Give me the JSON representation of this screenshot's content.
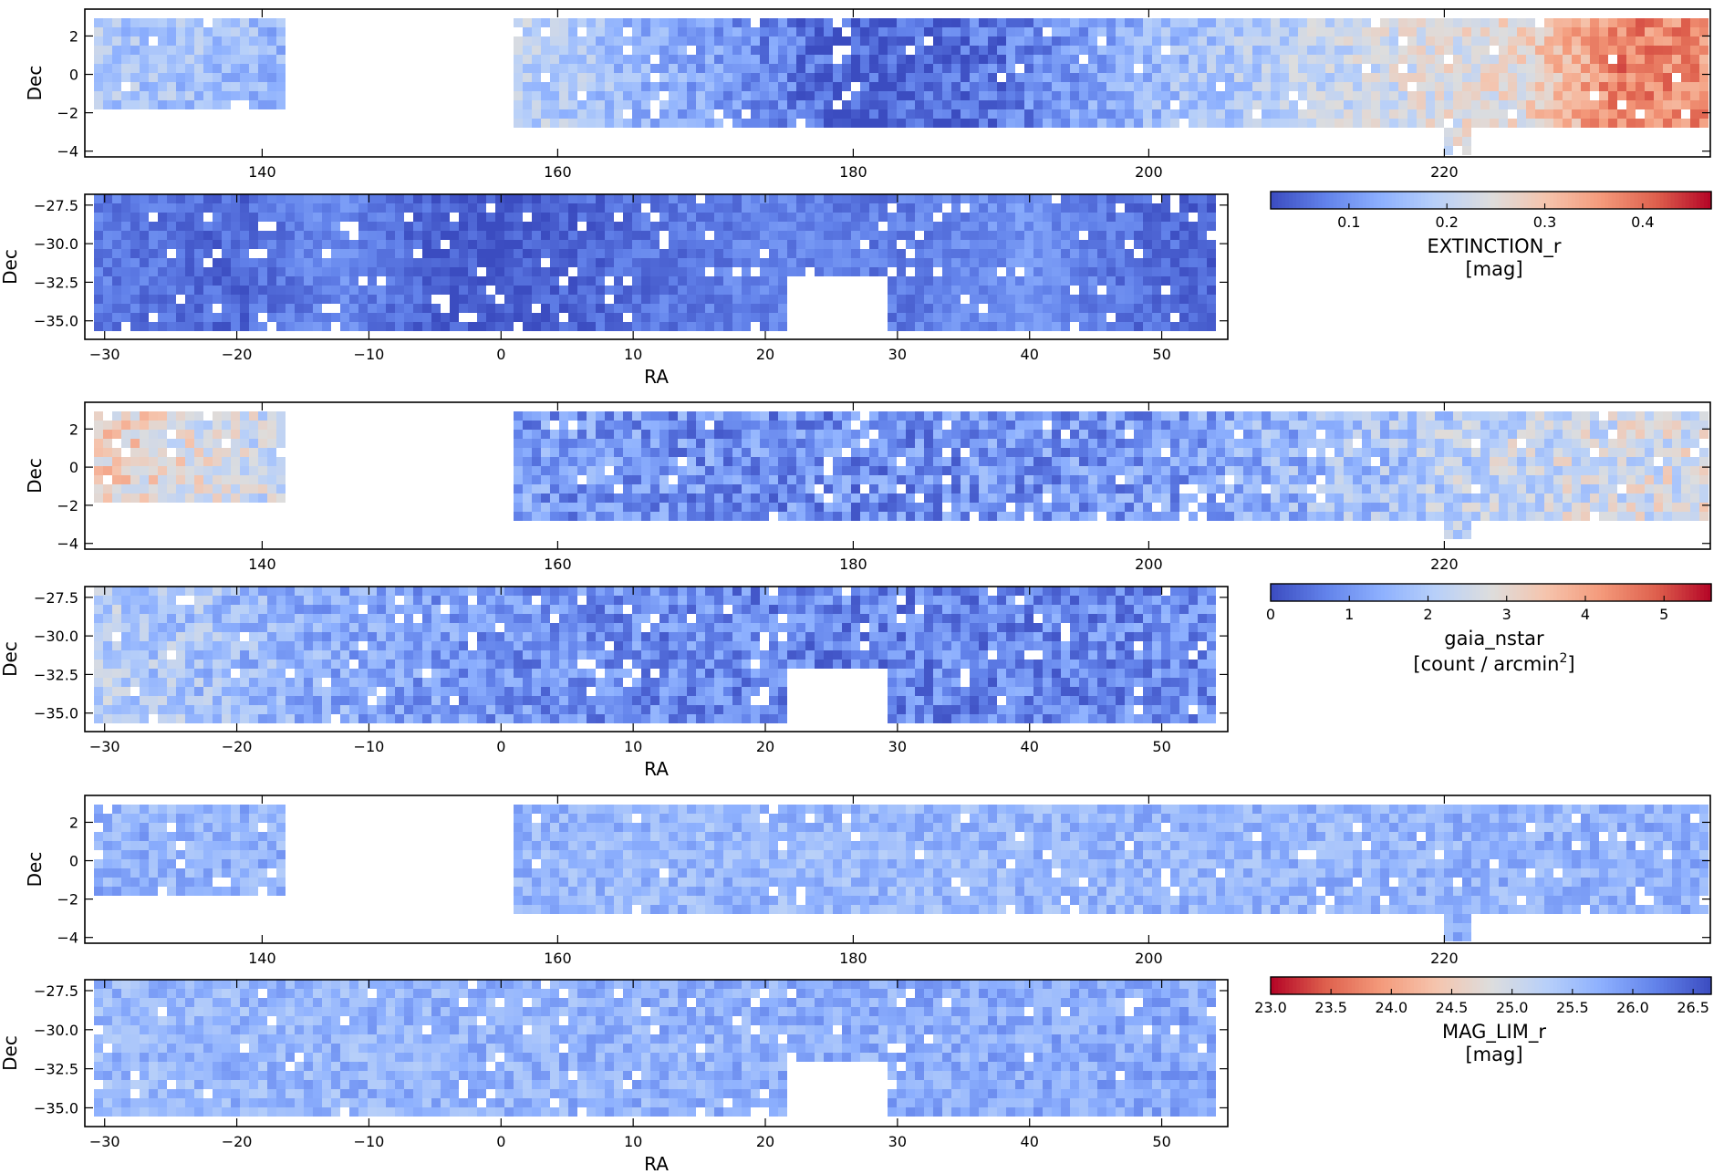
{
  "colors": {
    "cool_blue": "#3b4cc0",
    "neutral": "#dddddd",
    "warm_red": "#b40426",
    "axis": "#000000"
  },
  "chart_data": [
    {
      "type": "heatmap",
      "name": "extinction-north",
      "quantity": "EXTINCTION_r",
      "xlabel": "",
      "ylabel": "Dec",
      "xlim": [
        128,
        238
      ],
      "ylim": [
        -4.3,
        3.4
      ],
      "xticks": [
        140,
        160,
        180,
        200,
        220
      ],
      "xtick_labels": [
        "140",
        "160",
        "180",
        "200",
        "220"
      ],
      "yticks": [
        2,
        0,
        -2,
        -4
      ],
      "ytick_labels": [
        "2",
        "0",
        "−2",
        "−4"
      ],
      "footprint": [
        [
          128.5,
          141.5,
          -2,
          3
        ],
        [
          157,
          238,
          -3,
          3
        ],
        [
          203,
          205,
          -3,
          -2
        ],
        [
          220,
          222,
          -4,
          -3
        ]
      ],
      "trend": [
        [
          128,
          0.18
        ],
        [
          145,
          0.14
        ],
        [
          157,
          0.2
        ],
        [
          170,
          0.12
        ],
        [
          180,
          0.04
        ],
        [
          190,
          0.07
        ],
        [
          200,
          0.15
        ],
        [
          215,
          0.22
        ],
        [
          225,
          0.26
        ],
        [
          232,
          0.38
        ],
        [
          238,
          0.36
        ]
      ],
      "noise": 0.05,
      "cmap": "coolwarm",
      "vmin": 0.02,
      "vmax": 0.47
    },
    {
      "type": "heatmap",
      "name": "extinction-south",
      "quantity": "EXTINCTION_r",
      "xlabel": "RA",
      "ylabel": "Dec",
      "xlim": [
        -31.5,
        55
      ],
      "ylim": [
        -36.2,
        -26.8
      ],
      "xticks": [
        -30,
        -20,
        -10,
        0,
        10,
        20,
        30,
        40,
        50
      ],
      "xtick_labels": [
        "−30",
        "−20",
        "−10",
        "0",
        "10",
        "20",
        "30",
        "40",
        "50"
      ],
      "yticks": [
        -27.5,
        -30,
        -32.5,
        -35
      ],
      "ytick_labels": [
        "−27.5",
        "−30.0",
        "−32.5",
        "−35.0"
      ],
      "footprint": [
        [
          -30.5,
          54,
          -35.8,
          -27
        ]
      ],
      "holes": [
        [
          22,
          29,
          -36.5,
          -32.2
        ]
      ],
      "trend": [
        [
          -30,
          0.07
        ],
        [
          -20,
          0.05
        ],
        [
          -12,
          0.09
        ],
        [
          -5,
          0.04
        ],
        [
          0,
          0.03
        ],
        [
          10,
          0.06
        ],
        [
          20,
          0.08
        ],
        [
          30,
          0.07
        ],
        [
          40,
          0.1
        ],
        [
          48,
          0.06
        ],
        [
          54,
          0.04
        ]
      ],
      "noise": 0.03,
      "cmap": "coolwarm",
      "vmin": 0.02,
      "vmax": 0.47
    },
    {
      "type": "heatmap",
      "name": "gaia-north",
      "quantity": "gaia_nstar",
      "xlabel": "",
      "ylabel": "Dec",
      "xlim": [
        128,
        238
      ],
      "ylim": [
        -4.3,
        3.4
      ],
      "xticks": [
        140,
        160,
        180,
        200,
        220
      ],
      "xtick_labels": [
        "140",
        "160",
        "180",
        "200",
        "220"
      ],
      "yticks": [
        2,
        0,
        -2,
        -4
      ],
      "ytick_labels": [
        "2",
        "0",
        "−2",
        "−4"
      ],
      "footprint": [
        [
          128.5,
          141.5,
          -2,
          3
        ],
        [
          157,
          238,
          -3,
          3
        ],
        [
          203,
          205,
          -3,
          -2
        ],
        [
          220,
          222,
          -4,
          -3
        ]
      ],
      "trend": [
        [
          128,
          3.4
        ],
        [
          135,
          2.8
        ],
        [
          141,
          2.4
        ],
        [
          157,
          1.1
        ],
        [
          180,
          0.9
        ],
        [
          200,
          1.1
        ],
        [
          215,
          1.8
        ],
        [
          225,
          2.4
        ],
        [
          238,
          2.7
        ]
      ],
      "noise": 0.8,
      "cmap": "coolwarm",
      "vmin": 0,
      "vmax": 5.6
    },
    {
      "type": "heatmap",
      "name": "gaia-south",
      "quantity": "gaia_nstar",
      "xlabel": "RA",
      "ylabel": "Dec",
      "xlim": [
        -31.5,
        55
      ],
      "ylim": [
        -36.2,
        -26.8
      ],
      "xticks": [
        -30,
        -20,
        -10,
        0,
        10,
        20,
        30,
        40,
        50
      ],
      "xtick_labels": [
        "−30",
        "−20",
        "−10",
        "0",
        "10",
        "20",
        "30",
        "40",
        "50"
      ],
      "yticks": [
        -27.5,
        -30,
        -32.5,
        -35
      ],
      "ytick_labels": [
        "−27.5",
        "−30.0",
        "−32.5",
        "−35.0"
      ],
      "footprint": [
        [
          -30.5,
          54,
          -35.8,
          -27
        ]
      ],
      "holes": [
        [
          22,
          29,
          -36.5,
          -32.2
        ]
      ],
      "trend": [
        [
          -30,
          2.1
        ],
        [
          -20,
          1.7
        ],
        [
          -10,
          1.3
        ],
        [
          0,
          1.0
        ],
        [
          20,
          0.8
        ],
        [
          40,
          0.8
        ],
        [
          54,
          0.9
        ]
      ],
      "noise": 0.7,
      "cmap": "coolwarm",
      "vmin": 0,
      "vmax": 5.6
    },
    {
      "type": "heatmap",
      "name": "maglim-north",
      "quantity": "MAG_LIM_r",
      "xlabel": "",
      "ylabel": "Dec",
      "xlim": [
        128,
        238
      ],
      "ylim": [
        -4.3,
        3.4
      ],
      "xticks": [
        140,
        160,
        180,
        200,
        220
      ],
      "xtick_labels": [
        "140",
        "160",
        "180",
        "200",
        "220"
      ],
      "yticks": [
        2,
        0,
        -2,
        -4
      ],
      "ytick_labels": [
        "2",
        "0",
        "−2",
        "−4"
      ],
      "footprint": [
        [
          128.5,
          141.5,
          -2,
          3
        ],
        [
          157,
          238,
          -3,
          3
        ],
        [
          203,
          205,
          -3,
          -2
        ],
        [
          220,
          222,
          -4,
          -3
        ]
      ],
      "trend": [
        [
          128,
          25.7
        ],
        [
          180,
          25.6
        ],
        [
          238,
          25.7
        ]
      ],
      "noise": 0.35,
      "cmap": "coolwarm_r",
      "vmin": 23.0,
      "vmax": 26.65
    },
    {
      "type": "heatmap",
      "name": "maglim-south",
      "quantity": "MAG_LIM_r",
      "xlabel": "RA",
      "ylabel": "Dec",
      "xlim": [
        -31.5,
        55
      ],
      "ylim": [
        -36.2,
        -26.8
      ],
      "xticks": [
        -30,
        -20,
        -10,
        0,
        10,
        20,
        30,
        40,
        50
      ],
      "xtick_labels": [
        "−30",
        "−20",
        "−10",
        "0",
        "10",
        "20",
        "30",
        "40",
        "50"
      ],
      "yticks": [
        -27.5,
        -30,
        -32.5,
        -35
      ],
      "ytick_labels": [
        "−27.5",
        "−30.0",
        "−32.5",
        "−35.0"
      ],
      "footprint": [
        [
          -30.5,
          54,
          -35.8,
          -27
        ]
      ],
      "holes": [
        [
          22,
          29,
          -36.5,
          -32.2
        ]
      ],
      "trend": [
        [
          -30,
          25.6
        ],
        [
          10,
          25.7
        ],
        [
          54,
          25.8
        ]
      ],
      "noise": 0.35,
      "cmap": "coolwarm_r",
      "vmin": 23.0,
      "vmax": 26.65
    }
  ],
  "colorbars": [
    {
      "name": "colorbar-extinction",
      "cmap": "coolwarm",
      "vmin": 0.02,
      "vmax": 0.47,
      "ticks": [
        0.1,
        0.2,
        0.3,
        0.4
      ],
      "tick_labels": [
        "0.1",
        "0.2",
        "0.3",
        "0.4"
      ],
      "label": "EXTINCTION_r",
      "unit": "[mag]"
    },
    {
      "name": "colorbar-gaia",
      "cmap": "coolwarm",
      "vmin": 0,
      "vmax": 5.6,
      "ticks": [
        0,
        1,
        2,
        3,
        4,
        5
      ],
      "tick_labels": [
        "0",
        "1",
        "2",
        "3",
        "4",
        "5"
      ],
      "label": "gaia_nstar",
      "unit_prefix": "[count / arcmin",
      "unit_sup": "2",
      "unit_suffix": "]"
    },
    {
      "name": "colorbar-maglim",
      "cmap": "coolwarm_r",
      "vmin": 23.0,
      "vmax": 26.65,
      "ticks": [
        23.0,
        23.5,
        24.0,
        24.5,
        25.0,
        25.5,
        26.0,
        26.5
      ],
      "tick_labels": [
        "23.0",
        "23.5",
        "24.0",
        "24.5",
        "25.0",
        "25.5",
        "26.0",
        "26.5"
      ],
      "label": "MAG_LIM_r",
      "unit": "[mag]"
    }
  ]
}
